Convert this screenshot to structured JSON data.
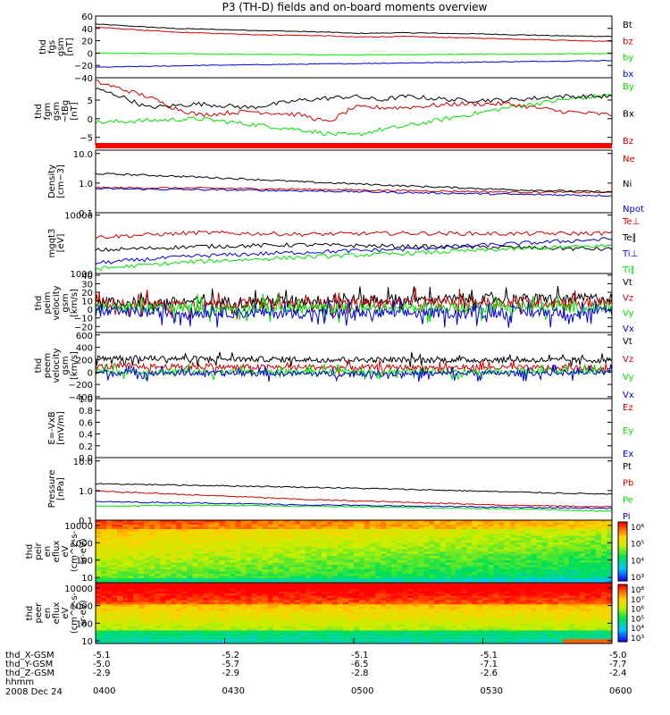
{
  "title": "P3 (TH-D) fields and on-board moments overview",
  "date_label": "2008 Dec 24",
  "time_axis": {
    "times": [
      "0400",
      "0430",
      "0500",
      "0530",
      "0600"
    ],
    "rows": [
      {
        "name": "thd_X-GSM",
        "values": [
          "-5.1",
          "-5.2",
          "-5.1",
          "-5.1",
          "-5.0"
        ]
      },
      {
        "name": "thd_Y-GSM",
        "values": [
          "-5.0",
          "-5.7",
          "-6.5",
          "-7.1",
          "-7.7"
        ]
      },
      {
        "name": "thd_Z-GSM",
        "values": [
          "-2.9",
          "-2.9",
          "-2.8",
          "-2.6",
          "-2.4"
        ]
      },
      {
        "name": "hhmm",
        "values": []
      }
    ]
  },
  "colors": {
    "black": "#000000",
    "red": "#cc0000",
    "green": "#00e000",
    "blue": "#0000cc"
  },
  "chart_data": [
    {
      "type": "line",
      "id": "fgs",
      "ylabel": [
        "thd",
        "fgs",
        "gsm",
        "[nT]"
      ],
      "ylim": [
        -40,
        60
      ],
      "scale": "linear",
      "yticks": [
        "60",
        "40",
        "20",
        "0",
        "−20",
        "−40"
      ],
      "ytick_values": [
        60,
        40,
        20,
        0,
        -20,
        -40
      ],
      "series": [
        {
          "name": "Bt",
          "color": "#000000",
          "x": [
            0,
            0.15,
            0.3,
            0.45,
            0.5,
            0.6,
            0.75,
            0.9,
            1
          ],
          "y": [
            47,
            40,
            37,
            34,
            32,
            33,
            31,
            28,
            27
          ]
        },
        {
          "name": "bz",
          "color": "#cc0000",
          "x": [
            0,
            0.15,
            0.3,
            0.45,
            0.5,
            0.6,
            0.75,
            0.9,
            1
          ],
          "y": [
            42,
            34,
            30,
            28,
            26,
            27,
            24,
            21,
            19
          ]
        },
        {
          "name": "by",
          "color": "#00e000",
          "x": [
            0,
            0.3,
            0.5,
            0.7,
            1
          ],
          "y": [
            0,
            -2,
            -3,
            -2,
            -1
          ]
        },
        {
          "name": "bx",
          "color": "#0000cc",
          "x": [
            0,
            0.2,
            0.4,
            0.6,
            0.8,
            1
          ],
          "y": [
            -23,
            -20,
            -18,
            -16,
            -14,
            -12
          ]
        }
      ]
    },
    {
      "type": "line",
      "id": "fgm",
      "ylabel": [
        "thd",
        "fgm",
        "gsm",
        "~tBg",
        "[nT]"
      ],
      "ylim": [
        -7,
        11
      ],
      "scale": "linear",
      "yticks": [
        "5",
        "0",
        "−5"
      ],
      "ytick_values": [
        5,
        0,
        -5
      ],
      "series": [
        {
          "name": "By",
          "color": "#00e000",
          "x": [
            0,
            0.1,
            0.2,
            0.3,
            0.4,
            0.45,
            0.5,
            0.55,
            0.6,
            0.7,
            0.8,
            0.9,
            1
          ],
          "y": [
            -1,
            -0.5,
            0,
            -1.5,
            -3,
            -4,
            -4.5,
            -3,
            -2,
            0.5,
            3,
            5,
            6.5
          ]
        },
        {
          "name": "Bx",
          "color": "#000000",
          "x": [
            0,
            0.05,
            0.1,
            0.2,
            0.3,
            0.4,
            0.5,
            0.55,
            0.6,
            0.7,
            0.8,
            0.9,
            1
          ],
          "y": [
            8,
            6,
            3,
            4,
            3,
            5,
            6,
            5,
            6,
            5,
            5,
            6,
            6
          ]
        },
        {
          "name": "Bz",
          "color": "#cc0000",
          "x": [
            0,
            0.05,
            0.1,
            0.15,
            0.2,
            0.3,
            0.4,
            0.45,
            0.5,
            0.6,
            0.7,
            0.8,
            0.9,
            1
          ],
          "y": [
            10,
            8,
            6,
            3,
            1,
            2,
            1,
            -1,
            3,
            3,
            4,
            4,
            2,
            1
          ]
        }
      ]
    },
    {
      "type": "line",
      "id": "density",
      "ylabel": [
        "Density",
        "[cm−3]"
      ],
      "ylim": [
        0.1,
        13
      ],
      "scale": "log",
      "yticks": [
        "10.0",
        "1.0",
        "0.1"
      ],
      "ytick_values": [
        10,
        1,
        0.1
      ],
      "series": [
        {
          "name": "Ne",
          "color": "#cc0000",
          "x": [
            0,
            0.2,
            0.4,
            0.6,
            0.8,
            1
          ],
          "y": [
            0.7,
            0.68,
            0.62,
            0.56,
            0.5,
            0.48
          ]
        },
        {
          "name": "Ni",
          "color": "#000000",
          "x": [
            0,
            0.2,
            0.4,
            0.6,
            0.8,
            1
          ],
          "y": [
            2.1,
            1.6,
            1.1,
            0.8,
            0.6,
            0.5
          ]
        },
        {
          "name": "Npot",
          "color": "#0000cc",
          "x": [
            0,
            0.2,
            0.4,
            0.6,
            0.8,
            1
          ],
          "y": [
            0.65,
            0.6,
            0.55,
            0.48,
            0.42,
            0.38
          ]
        }
      ]
    },
    {
      "type": "line",
      "id": "temperature",
      "ylabel": [
        "mgqt3",
        "[eV]"
      ],
      "ylim": [
        1000,
        11000
      ],
      "scale": "log",
      "yticks": [
        "10000",
        "1000"
      ],
      "ytick_values": [
        10000,
        1000
      ],
      "series": [
        {
          "name": "Te⊥",
          "color": "#cc0000",
          "x": [
            0,
            0.2,
            0.4,
            0.6,
            0.8,
            1
          ],
          "y": [
            4200,
            5000,
            4700,
            4900,
            4800,
            4900
          ]
        },
        {
          "name": "Te∥",
          "color": "#000000",
          "x": [
            0,
            0.2,
            0.4,
            0.6,
            0.8,
            1
          ],
          "y": [
            2500,
            2900,
            3100,
            2900,
            2800,
            2600
          ]
        },
        {
          "name": "Ti⊥",
          "color": "#0000cc",
          "x": [
            0,
            0.2,
            0.4,
            0.6,
            0.8,
            1
          ],
          "y": [
            1500,
            2000,
            2300,
            2600,
            3200,
            3900
          ]
        },
        {
          "name": "Ti∥",
          "color": "#00e000",
          "x": [
            0,
            0.2,
            0.4,
            0.6,
            0.8,
            1
          ],
          "y": [
            1200,
            1600,
            1900,
            2200,
            2600,
            3000
          ]
        }
      ]
    },
    {
      "type": "line",
      "id": "peim-velocity",
      "ylabel": [
        "thd",
        "peim",
        "velocity",
        "gsm",
        "[km/s]"
      ],
      "ylim": [
        -27,
        42
      ],
      "scale": "linear",
      "yticks": [
        "40",
        "30",
        "20",
        "10",
        "0",
        "−10",
        "−20"
      ],
      "ytick_values": [
        40,
        30,
        20,
        10,
        0,
        -10,
        -20
      ],
      "series": [
        {
          "name": "Vt",
          "color": "#000000",
          "x": [
            0,
            0.25,
            0.5,
            0.75,
            1
          ],
          "y": [
            8,
            9,
            11,
            12,
            13
          ]
        },
        {
          "name": "Vz",
          "color": "#cc0000",
          "x": [
            0,
            0.25,
            0.5,
            0.75,
            1
          ],
          "y": [
            6,
            6,
            7,
            8,
            8
          ]
        },
        {
          "name": "Vy",
          "color": "#00e000",
          "x": [
            0,
            0.25,
            0.5,
            0.75,
            1
          ],
          "y": [
            2,
            1,
            1,
            2,
            2
          ]
        },
        {
          "name": "Vx",
          "color": "#0000cc",
          "x": [
            0,
            0.25,
            0.5,
            0.75,
            1
          ],
          "y": [
            -3,
            -4,
            -5,
            -4,
            -3
          ]
        }
      ]
    },
    {
      "type": "line",
      "id": "peem-velocity",
      "ylabel": [
        "thd",
        "peem",
        "velocity",
        "gsm",
        "[km/s]"
      ],
      "ylim": [
        -430,
        640
      ],
      "scale": "linear",
      "yticks": [
        "600",
        "400",
        "200",
        "0",
        "−200",
        "−400"
      ],
      "ytick_values": [
        600,
        400,
        200,
        0,
        -200,
        -400
      ],
      "series": [
        {
          "name": "Vt",
          "color": "#000000",
          "x": [
            0,
            0.25,
            0.5,
            0.75,
            1
          ],
          "y": [
            230,
            210,
            200,
            195,
            190
          ]
        },
        {
          "name": "Vz",
          "color": "#cc0000",
          "x": [
            0,
            0.25,
            0.5,
            0.75,
            1
          ],
          "y": [
            90,
            80,
            75,
            70,
            65
          ]
        },
        {
          "name": "Vy",
          "color": "#00e000",
          "x": [
            0,
            0.25,
            0.5,
            0.75,
            1
          ],
          "y": [
            10,
            0,
            0,
            10,
            10
          ]
        },
        {
          "name": "Vx",
          "color": "#0000cc",
          "x": [
            0,
            0.25,
            0.5,
            0.75,
            1
          ],
          "y": [
            -10,
            -20,
            -30,
            -20,
            -10
          ]
        }
      ]
    },
    {
      "type": "line",
      "id": "efield",
      "ylabel": [
        "E=-VxB",
        "[mV/m]"
      ],
      "ylim": [
        0,
        1
      ],
      "scale": "linear",
      "yticks": [
        "1.0",
        "0.8",
        "0.6",
        "0.4",
        "0.2",
        "0.0"
      ],
      "ytick_values": [
        1,
        0.8,
        0.6,
        0.4,
        0.2,
        0
      ],
      "series": [
        {
          "name": "Ez",
          "color": "#cc0000",
          "x": [],
          "y": []
        },
        {
          "name": "Ey",
          "color": "#00e000",
          "x": [],
          "y": []
        },
        {
          "name": "Ex",
          "color": "#0000cc",
          "x": [],
          "y": []
        }
      ]
    },
    {
      "type": "line",
      "id": "pressure",
      "ylabel": [
        "Pressure",
        "[nPa]"
      ],
      "ylim": [
        0.1,
        13
      ],
      "scale": "log",
      "yticks": [
        "10.0",
        "1.0",
        "0.1"
      ],
      "ytick_values": [
        10,
        1,
        0.1
      ],
      "series": [
        {
          "name": "Pt",
          "color": "#000000",
          "x": [
            0,
            0.2,
            0.4,
            0.6,
            0.8,
            1
          ],
          "y": [
            1.7,
            1.5,
            1.3,
            1.1,
            0.9,
            0.75
          ]
        },
        {
          "name": "Pb",
          "color": "#cc0000",
          "x": [
            0,
            0.2,
            0.4,
            0.6,
            0.8,
            1
          ],
          "y": [
            0.95,
            0.7,
            0.5,
            0.4,
            0.32,
            0.28
          ]
        },
        {
          "name": "Pe",
          "color": "#00e000",
          "x": [
            0,
            0.2,
            0.4,
            0.6,
            0.8,
            1
          ],
          "y": [
            0.3,
            0.32,
            0.3,
            0.27,
            0.24,
            0.2
          ]
        },
        {
          "name": "Pi",
          "color": "#0000cc",
          "x": [
            0,
            0.2,
            0.4,
            0.6,
            0.8,
            1
          ],
          "y": [
            0.42,
            0.38,
            0.33,
            0.3,
            0.27,
            0.25
          ]
        }
      ]
    },
    {
      "type": "heatmap",
      "id": "peir",
      "ylabel": [
        "thd",
        "peir",
        "en",
        "eflux",
        "eV",
        "(cm^2-s-",
        "sr-eV)"
      ],
      "ylim": [
        5,
        20000
      ],
      "scale": "log",
      "yticks": [
        "10000",
        "1000",
        "100",
        "10"
      ],
      "ytick_values": [
        10000,
        1000,
        100,
        10
      ],
      "colorbar": {
        "labels": [
          "10⁶",
          "10⁵",
          "10⁴",
          "10³"
        ],
        "values": [
          1000000,
          100000,
          10000,
          1000
        ]
      }
    },
    {
      "type": "heatmap",
      "id": "peer",
      "ylabel": [
        "thd",
        "peer",
        "en",
        "eflux",
        "eV",
        "(cm^2-s-",
        "sr-eV)"
      ],
      "ylim": [
        7,
        20000
      ],
      "scale": "log",
      "yticks": [
        "10000",
        "1000",
        "100",
        "10"
      ],
      "ytick_values": [
        10000,
        1000,
        100,
        10
      ],
      "colorbar": {
        "labels": [
          "10⁸",
          "10⁷",
          "10⁶",
          "10⁵",
          "10⁴",
          "10³"
        ],
        "values": [
          100000000,
          10000000,
          1000000,
          100000,
          10000,
          1000
        ]
      }
    }
  ]
}
